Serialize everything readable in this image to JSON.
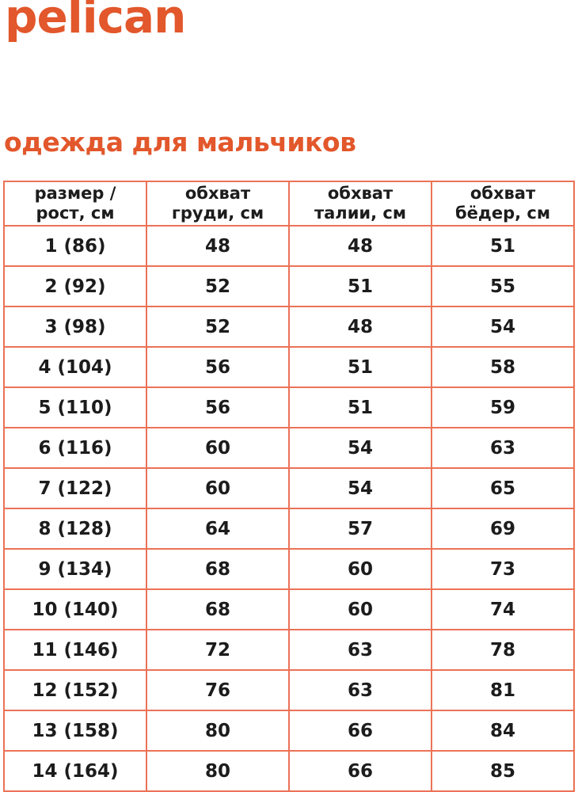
{
  "brand": {
    "logo_text": "pelican"
  },
  "heading": {
    "title": "одежда для мальчиков"
  },
  "colors": {
    "accent": "#e2572b",
    "table_border": "#ec7257",
    "text_dark": "#1c1c1c",
    "background": "#ffffff"
  },
  "size_table": {
    "columns": [
      {
        "label": "размер /\nрост, см"
      },
      {
        "label": "обхват\nгруди, см"
      },
      {
        "label": "обхват\nталии, см"
      },
      {
        "label": "обхват\nбёдер, см"
      }
    ],
    "rows": [
      {
        "size_height": "1 (86)",
        "chest_cm": "48",
        "waist_cm": "48",
        "hips_cm": "51"
      },
      {
        "size_height": "2 (92)",
        "chest_cm": "52",
        "waist_cm": "51",
        "hips_cm": "55"
      },
      {
        "size_height": "3 (98)",
        "chest_cm": "52",
        "waist_cm": "48",
        "hips_cm": "54"
      },
      {
        "size_height": "4 (104)",
        "chest_cm": "56",
        "waist_cm": "51",
        "hips_cm": "58"
      },
      {
        "size_height": "5 (110)",
        "chest_cm": "56",
        "waist_cm": "51",
        "hips_cm": "59"
      },
      {
        "size_height": "6 (116)",
        "chest_cm": "60",
        "waist_cm": "54",
        "hips_cm": "63"
      },
      {
        "size_height": "7 (122)",
        "chest_cm": "60",
        "waist_cm": "54",
        "hips_cm": "65"
      },
      {
        "size_height": "8 (128)",
        "chest_cm": "64",
        "waist_cm": "57",
        "hips_cm": "69"
      },
      {
        "size_height": "9 (134)",
        "chest_cm": "68",
        "waist_cm": "60",
        "hips_cm": "73"
      },
      {
        "size_height": "10 (140)",
        "chest_cm": "68",
        "waist_cm": "60",
        "hips_cm": "74"
      },
      {
        "size_height": "11 (146)",
        "chest_cm": "72",
        "waist_cm": "63",
        "hips_cm": "78"
      },
      {
        "size_height": "12 (152)",
        "chest_cm": "76",
        "waist_cm": "63",
        "hips_cm": "81"
      },
      {
        "size_height": "13 (158)",
        "chest_cm": "80",
        "waist_cm": "66",
        "hips_cm": "84"
      },
      {
        "size_height": "14 (164)",
        "chest_cm": "80",
        "waist_cm": "66",
        "hips_cm": "85"
      }
    ]
  }
}
